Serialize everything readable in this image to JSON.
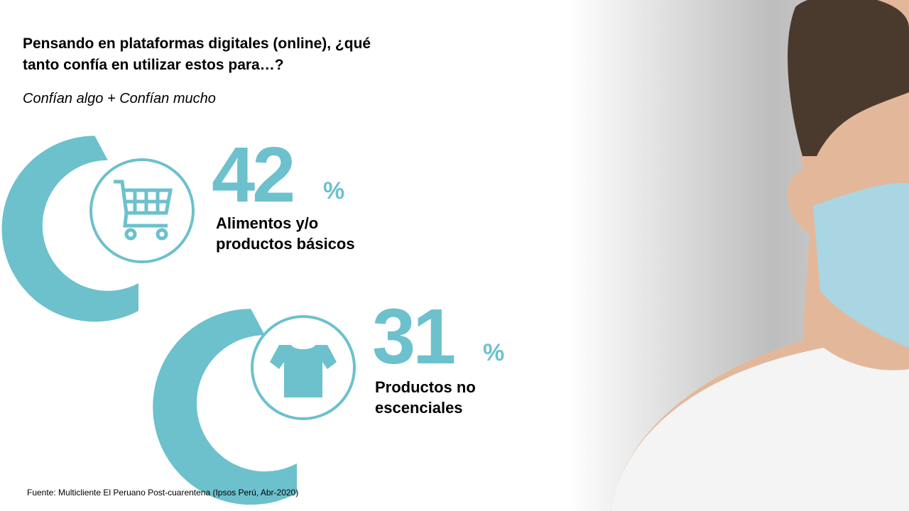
{
  "title": [
    "Pensando en plataformas digitales (online), ¿qué",
    "tanto confía en utilizar estos para…?"
  ],
  "subtitle": "Confían algo + Confían mucho",
  "stats": [
    {
      "value": "42",
      "unit": "%",
      "label": [
        "Alimentos y/o",
        "productos básicos"
      ]
    },
    {
      "value": "31",
      "unit": "%",
      "label": [
        "Productos no",
        "escenciales"
      ]
    }
  ],
  "source": "Fuente: Multicliente El Peruano Post-cuarentena (Ipsos Perú, Abr-2020)"
}
